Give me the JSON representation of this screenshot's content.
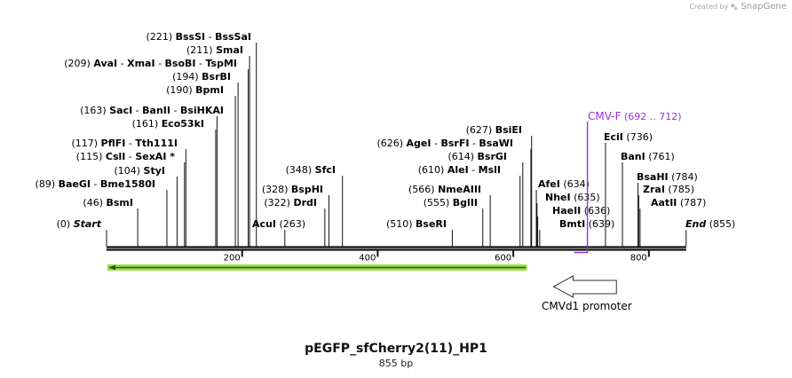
{
  "credit": {
    "prefix": "Created by",
    "brand": "SnapGene"
  },
  "plasmid": {
    "name": "pEGFP_sfCherry2(11)_HP1",
    "size_label": "855 bp",
    "length_bp": 855
  },
  "axis": {
    "ticks": [
      200,
      400,
      600,
      800
    ]
  },
  "terminals": [
    {
      "pos_label": "(0)",
      "name": "Start",
      "bp": 0
    },
    {
      "pos_label": "(855)",
      "name": "End",
      "bp": 855
    }
  ],
  "sites": [
    {
      "pos": "(46)",
      "names": [
        "BsmI"
      ],
      "bp": 46
    },
    {
      "pos": "(89)",
      "names": [
        "BaeGI",
        "Bme1580I"
      ],
      "bp": 89
    },
    {
      "pos": "(104)",
      "names": [
        "StyI"
      ],
      "bp": 104
    },
    {
      "pos": "(115)",
      "names": [
        "CslI",
        "SexAI *"
      ],
      "bp": 115
    },
    {
      "pos": "(117)",
      "names": [
        "PflFI",
        "Tth111I"
      ],
      "bp": 117
    },
    {
      "pos": "(161)",
      "names": [
        "Eco53kI"
      ],
      "bp": 161
    },
    {
      "pos": "(163)",
      "names": [
        "SacI",
        "BanII",
        "BsiHKAI"
      ],
      "bp": 163
    },
    {
      "pos": "(190)",
      "names": [
        "BpmI"
      ],
      "bp": 190
    },
    {
      "pos": "(194)",
      "names": [
        "BsrBI"
      ],
      "bp": 194
    },
    {
      "pos": "(209)",
      "names": [
        "AvaI",
        "XmaI",
        "BsoBI",
        "TspMI"
      ],
      "bp": 209
    },
    {
      "pos": "(211)",
      "names": [
        "SmaI"
      ],
      "bp": 211
    },
    {
      "pos": "(221)",
      "names": [
        "BssSI",
        "BssSaI"
      ],
      "bp": 221
    },
    {
      "pos": "(263)",
      "names": [
        "AcuI"
      ],
      "bp": 263
    },
    {
      "pos": "(322)",
      "names": [
        "DrdI"
      ],
      "bp": 322
    },
    {
      "pos": "(328)",
      "names": [
        "BspHI"
      ],
      "bp": 328
    },
    {
      "pos": "(348)",
      "names": [
        "SfcI"
      ],
      "bp": 348
    },
    {
      "pos": "(510)",
      "names": [
        "BseRI"
      ],
      "bp": 510
    },
    {
      "pos": "(555)",
      "names": [
        "BglII"
      ],
      "bp": 555
    },
    {
      "pos": "(566)",
      "names": [
        "NmeAIII"
      ],
      "bp": 566
    },
    {
      "pos": "(610)",
      "names": [
        "AleI",
        "MslI"
      ],
      "bp": 610
    },
    {
      "pos": "(614)",
      "names": [
        "BsrGI"
      ],
      "bp": 614
    },
    {
      "pos": "(626)",
      "names": [
        "AgeI",
        "BsrFI",
        "BsaWI"
      ],
      "bp": 626
    },
    {
      "pos": "(627)",
      "names": [
        "BsiEI"
      ],
      "bp": 627
    },
    {
      "pos": "(634)",
      "names": [
        "AfeI"
      ],
      "bp": 634
    },
    {
      "pos": "(635)",
      "names": [
        "NheI"
      ],
      "bp": 635
    },
    {
      "pos": "(636)",
      "names": [
        "HaeII"
      ],
      "bp": 636
    },
    {
      "pos": "(639)",
      "names": [
        "BmtI"
      ],
      "bp": 639
    },
    {
      "pos": "(736)",
      "names": [
        "EciI"
      ],
      "bp": 736
    },
    {
      "pos": "(761)",
      "names": [
        "BanI"
      ],
      "bp": 761
    },
    {
      "pos": "(784)",
      "names": [
        "BsaHI"
      ],
      "bp": 784
    },
    {
      "pos": "(785)",
      "names": [
        "ZraI"
      ],
      "bp": 785
    },
    {
      "pos": "(787)",
      "names": [
        "AatII"
      ],
      "bp": 787
    }
  ],
  "primer": {
    "name": "CMV-F",
    "range": "(692 .. 712)",
    "start_bp": 692,
    "end_bp": 712,
    "color": "#9b30d9"
  },
  "features": [
    {
      "name": "",
      "start_bp": 0,
      "end_bp": 620,
      "strand": "reverse",
      "color": "#9be04a"
    },
    {
      "name": "CMVd1 promoter",
      "start_bp": 662,
      "end_bp": 760,
      "strand": "reverse",
      "color": "#ffffff"
    }
  ]
}
